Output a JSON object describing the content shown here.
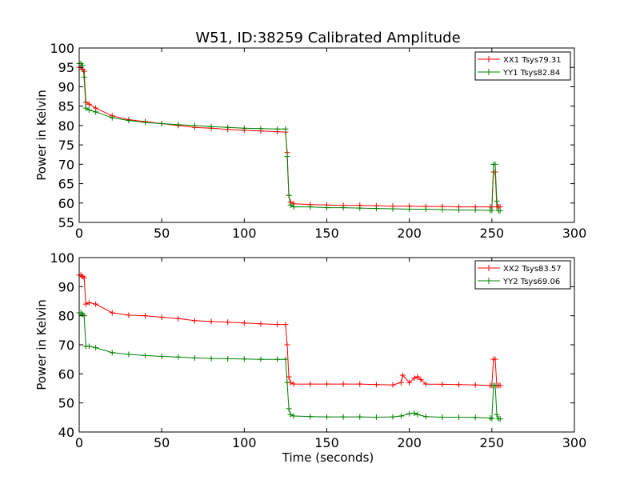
{
  "figure": {
    "title": "W51, ID:38259 Calibrated Amplitude",
    "xlabel": "Time (seconds)"
  },
  "colors": {
    "xx": "#ff0000",
    "yy": "#008000"
  },
  "chart_data": [
    {
      "type": "line",
      "title": "W51, ID:38259 Calibrated Amplitude",
      "xlabel": "",
      "ylabel": "Power in Kelvin",
      "xlim": [
        0,
        300
      ],
      "ylim": [
        55,
        100
      ],
      "xticks": [
        0,
        50,
        100,
        150,
        200,
        250,
        300
      ],
      "yticks": [
        55,
        60,
        65,
        70,
        75,
        80,
        85,
        90,
        95,
        100
      ],
      "grid": false,
      "legend_position": "top-right",
      "series": [
        {
          "name": "XX1 Tsys79.31",
          "color": "#ff0000",
          "x": [
            0,
            1,
            2,
            3,
            4,
            6,
            10,
            20,
            30,
            40,
            50,
            60,
            70,
            80,
            90,
            100,
            110,
            120,
            125,
            126,
            127,
            128,
            130,
            140,
            150,
            160,
            170,
            180,
            190,
            200,
            210,
            220,
            230,
            240,
            249,
            250,
            251,
            252,
            253,
            254,
            255
          ],
          "y": [
            95,
            95,
            94.5,
            94,
            86,
            85.5,
            84.5,
            82.5,
            81.5,
            81,
            80.5,
            80,
            79.5,
            79.3,
            79,
            78.8,
            78.6,
            78.4,
            78.3,
            73,
            62,
            60.2,
            59.8,
            59.6,
            59.5,
            59.4,
            59.4,
            59.3,
            59.2,
            59.2,
            59.1,
            59.1,
            59,
            59,
            59,
            59,
            68,
            68,
            59,
            59,
            59
          ]
        },
        {
          "name": "YY1 Tsys82.84",
          "color": "#008000",
          "x": [
            0,
            1,
            2,
            3,
            4,
            6,
            10,
            20,
            30,
            40,
            50,
            60,
            70,
            80,
            90,
            100,
            110,
            120,
            125,
            126,
            127,
            128,
            130,
            140,
            150,
            160,
            170,
            180,
            190,
            200,
            210,
            220,
            230,
            240,
            249,
            250,
            251,
            252,
            253,
            254,
            255
          ],
          "y": [
            96,
            96,
            95.5,
            92.5,
            84.5,
            84,
            83.5,
            82,
            81.3,
            80.8,
            80.5,
            80.2,
            80,
            79.7,
            79.5,
            79.3,
            79.2,
            79.1,
            79.1,
            72,
            62,
            59.5,
            59,
            59,
            58.8,
            58.8,
            58.7,
            58.6,
            58.5,
            58.4,
            58.4,
            58.3,
            58.2,
            58.2,
            58.1,
            58.1,
            70,
            70,
            60.5,
            58,
            58
          ]
        }
      ]
    },
    {
      "type": "line",
      "title": "",
      "xlabel": "Time (seconds)",
      "ylabel": "Power in Kelvin",
      "xlim": [
        0,
        300
      ],
      "ylim": [
        40,
        100
      ],
      "xticks": [
        0,
        50,
        100,
        150,
        200,
        250,
        300
      ],
      "yticks": [
        40,
        50,
        60,
        70,
        80,
        90,
        100
      ],
      "grid": false,
      "legend_position": "top-right",
      "series": [
        {
          "name": "XX2 Tsys83.57",
          "color": "#ff0000",
          "x": [
            0,
            1,
            2,
            3,
            4,
            6,
            10,
            20,
            30,
            40,
            50,
            60,
            70,
            80,
            90,
            100,
            110,
            120,
            125,
            126,
            127,
            128,
            130,
            140,
            150,
            160,
            170,
            180,
            190,
            195,
            196,
            200,
            203,
            205,
            207,
            210,
            220,
            230,
            240,
            249,
            250,
            251,
            252,
            253,
            254,
            255
          ],
          "y": [
            94,
            94,
            93.5,
            93,
            84,
            84.5,
            84,
            81,
            80.2,
            80,
            79.5,
            79,
            78.3,
            78,
            77.8,
            77.5,
            77.2,
            77,
            77,
            70,
            59,
            57,
            56.5,
            56.5,
            56.5,
            56.5,
            56.5,
            56.3,
            56.2,
            57,
            59.5,
            57,
            58.5,
            59,
            58,
            56.5,
            56.4,
            56.3,
            56.2,
            56,
            56,
            65,
            65,
            56,
            56,
            56
          ]
        },
        {
          "name": "YY2 Tsys69.06",
          "color": "#008000",
          "x": [
            0,
            1,
            2,
            3,
            4,
            6,
            10,
            20,
            30,
            40,
            50,
            60,
            70,
            80,
            90,
            100,
            110,
            120,
            125,
            126,
            127,
            128,
            130,
            140,
            150,
            160,
            170,
            180,
            190,
            195,
            200,
            203,
            205,
            210,
            220,
            230,
            240,
            249,
            250,
            251,
            252,
            253,
            254,
            255
          ],
          "y": [
            81,
            81,
            80.5,
            80,
            69.5,
            69.5,
            69,
            67.3,
            66.7,
            66.3,
            66,
            65.8,
            65.5,
            65.3,
            65.2,
            65.1,
            65,
            65,
            65,
            57,
            48,
            46,
            45.5,
            45.3,
            45.2,
            45.2,
            45.2,
            45.1,
            45.2,
            45.5,
            46.3,
            46.5,
            46,
            45.3,
            45.1,
            45.1,
            45,
            44.8,
            44.6,
            56,
            56,
            46,
            44.5,
            44.5
          ]
        }
      ]
    }
  ]
}
